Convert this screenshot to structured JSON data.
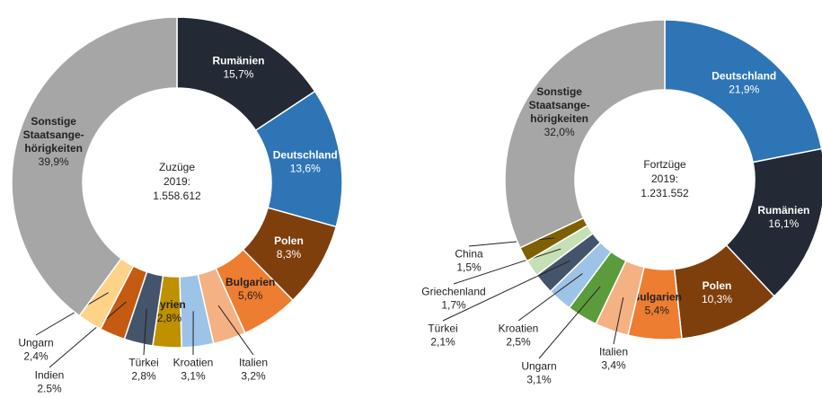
{
  "chart_data": [
    {
      "type": "pie",
      "center_text": [
        "Zuzüge",
        "2019:",
        "1.558.612"
      ],
      "categories": [
        [
          "Rumänien"
        ],
        [
          "Deutschland"
        ],
        [
          "Polen"
        ],
        [
          "Bulgarien"
        ],
        [
          "Italien"
        ],
        [
          "Kroatien"
        ],
        [
          "Syrien"
        ],
        [
          "Türkei"
        ],
        [
          "Indien"
        ],
        [
          "Ungarn"
        ],
        [
          "Sonstige",
          "Staatsange-",
          "hörigkeiten"
        ]
      ],
      "values": [
        15.7,
        13.6,
        8.3,
        5.6,
        3.2,
        3.1,
        2.8,
        2.8,
        2.5,
        2.4,
        39.9
      ],
      "value_labels": [
        "15,7%",
        "13,6%",
        "8,3%",
        "5,6%",
        "3,2%",
        "3,1%",
        "2,8%",
        "2,8%",
        "2.5%",
        "2,4%",
        "39,9%"
      ],
      "colors": [
        "#232a35",
        "#2e75b6",
        "#7f3f0c",
        "#ed7d31",
        "#f4b183",
        "#9dc3e6",
        "#bf9000",
        "#44546a",
        "#c55a11",
        "#ffd28a",
        "#a6a6a6"
      ]
    },
    {
      "type": "pie",
      "center_text": [
        "Fortzüge",
        "2019:",
        "1.231.552"
      ],
      "categories": [
        [
          "Deutschland"
        ],
        [
          "Rumänien"
        ],
        [
          "Polen"
        ],
        [
          "Bulgarien"
        ],
        [
          "Italien"
        ],
        [
          "Ungarn"
        ],
        [
          "Kroatien"
        ],
        [
          "Türkei"
        ],
        [
          "Griechenland"
        ],
        [
          "China"
        ],
        [
          "Sonstige",
          "Staatsange-",
          "hörigkeiten"
        ]
      ],
      "values": [
        21.9,
        16.1,
        10.3,
        5.4,
        3.4,
        3.1,
        2.5,
        2.1,
        1.7,
        1.5,
        32.0
      ],
      "value_labels": [
        "21,9%",
        "16,1%",
        "10,3%",
        "5,4%",
        "3,4%",
        "3,1%",
        "2,5%",
        "2,1%",
        "1,7%",
        "1,5%",
        "32,0%"
      ],
      "colors": [
        "#2e75b6",
        "#232a35",
        "#7f3f0c",
        "#ed7d31",
        "#f4b183",
        "#5b9b3c",
        "#9dc3e6",
        "#44546a",
        "#c5e0b4",
        "#7f6000",
        "#a6a6a6"
      ]
    }
  ]
}
